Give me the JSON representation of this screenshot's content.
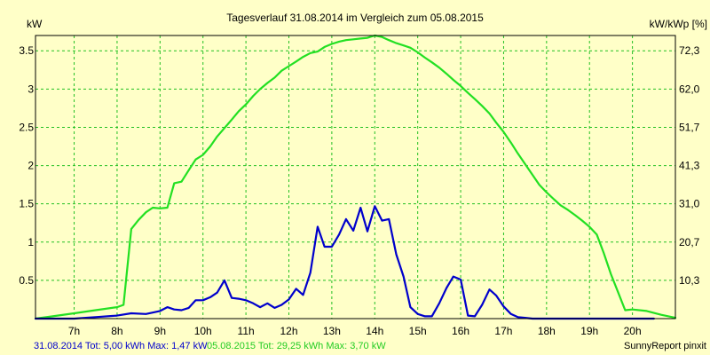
{
  "chart_data": {
    "type": "line",
    "title": "Tagesverlauf 31.08.2014 im Vergleich zum 05.08.2015",
    "ylabel_left": "kW",
    "ylabel_right": "kW/kWp [%]",
    "footer_credit": "SunnyReport pinxit",
    "x_ticks": [
      "7h",
      "8h",
      "9h",
      "10h",
      "11h",
      "12h",
      "13h",
      "14h",
      "15h",
      "16h",
      "17h",
      "18h",
      "19h",
      "20h"
    ],
    "xlim": [
      6.1,
      21.0
    ],
    "y_ticks": [
      "0.5",
      "1",
      "1.5",
      "2",
      "2.5",
      "3",
      "3.5"
    ],
    "ylim": [
      0,
      3.7
    ],
    "y2_ticks": [
      "10,3",
      "20,7",
      "31,0",
      "41,3",
      "51,7",
      "62,0",
      "72,3"
    ],
    "grid": true,
    "background": "#ffffc8",
    "grid_color": "#22c022",
    "series": [
      {
        "name": "05.08.2015",
        "color": "#22e022",
        "legend": "05.08.2015 Tot: 29,25 kWh Max: 3,70 kW",
        "x": [
          6.1,
          6.5,
          7.0,
          7.5,
          8.0,
          8.15,
          8.33,
          8.5,
          8.67,
          8.83,
          9.0,
          9.17,
          9.33,
          9.5,
          9.67,
          9.83,
          10.0,
          10.17,
          10.33,
          10.5,
          10.67,
          10.83,
          11.0,
          11.17,
          11.33,
          11.5,
          11.67,
          11.83,
          12.0,
          12.17,
          12.33,
          12.5,
          12.67,
          12.83,
          13.0,
          13.17,
          13.33,
          13.5,
          13.67,
          13.83,
          14.0,
          14.17,
          14.33,
          14.5,
          14.67,
          14.83,
          15.0,
          15.17,
          15.33,
          15.5,
          15.67,
          15.83,
          16.0,
          16.17,
          16.33,
          16.5,
          16.67,
          16.83,
          17.0,
          17.17,
          17.33,
          17.5,
          17.67,
          17.83,
          18.0,
          18.17,
          18.33,
          18.5,
          18.67,
          18.83,
          19.0,
          19.17,
          19.33,
          19.5,
          19.67,
          19.83,
          20.0,
          20.33,
          20.67,
          21.0
        ],
        "y": [
          0.0,
          0.03,
          0.07,
          0.11,
          0.15,
          0.18,
          1.17,
          1.29,
          1.39,
          1.45,
          1.44,
          1.45,
          1.77,
          1.79,
          1.94,
          2.08,
          2.14,
          2.25,
          2.38,
          2.49,
          2.6,
          2.71,
          2.8,
          2.91,
          3.0,
          3.08,
          3.15,
          3.24,
          3.3,
          3.36,
          3.42,
          3.47,
          3.49,
          3.55,
          3.59,
          3.62,
          3.64,
          3.65,
          3.66,
          3.67,
          3.7,
          3.68,
          3.64,
          3.6,
          3.57,
          3.54,
          3.48,
          3.41,
          3.35,
          3.28,
          3.2,
          3.12,
          3.04,
          2.95,
          2.87,
          2.78,
          2.68,
          2.56,
          2.44,
          2.3,
          2.16,
          2.02,
          1.88,
          1.75,
          1.65,
          1.56,
          1.48,
          1.42,
          1.35,
          1.28,
          1.2,
          1.1,
          0.86,
          0.58,
          0.34,
          0.11,
          0.12,
          0.1,
          0.05,
          0.01
        ]
      },
      {
        "name": "31.08.2014",
        "color": "#0000cc",
        "legend": "31.08.2014 Tot: 5,00 kWh Max: 1,47 kW",
        "x": [
          6.1,
          7.0,
          7.5,
          8.0,
          8.33,
          8.67,
          9.0,
          9.17,
          9.33,
          9.5,
          9.67,
          9.83,
          10.0,
          10.17,
          10.33,
          10.5,
          10.67,
          10.83,
          11.0,
          11.17,
          11.33,
          11.5,
          11.67,
          11.83,
          12.0,
          12.17,
          12.33,
          12.5,
          12.67,
          12.83,
          13.0,
          13.17,
          13.33,
          13.5,
          13.67,
          13.83,
          14.0,
          14.17,
          14.33,
          14.5,
          14.67,
          14.83,
          15.0,
          15.17,
          15.33,
          15.5,
          15.67,
          15.83,
          16.0,
          16.17,
          16.33,
          16.5,
          16.67,
          16.83,
          17.0,
          17.17,
          17.33,
          17.5,
          17.67,
          17.83,
          18.0,
          18.17,
          18.33,
          18.5,
          18.67,
          18.83,
          19.0,
          19.17,
          19.33,
          19.5,
          19.67,
          19.83,
          20.0,
          20.5
        ],
        "y": [
          0.0,
          0.0,
          0.02,
          0.04,
          0.07,
          0.06,
          0.1,
          0.15,
          0.12,
          0.11,
          0.14,
          0.24,
          0.24,
          0.28,
          0.34,
          0.5,
          0.27,
          0.26,
          0.24,
          0.2,
          0.15,
          0.2,
          0.14,
          0.18,
          0.25,
          0.39,
          0.31,
          0.6,
          1.2,
          0.94,
          0.94,
          1.1,
          1.3,
          1.15,
          1.45,
          1.14,
          1.47,
          1.28,
          1.3,
          0.84,
          0.55,
          0.15,
          0.06,
          0.03,
          0.03,
          0.2,
          0.4,
          0.55,
          0.51,
          0.04,
          0.03,
          0.18,
          0.38,
          0.3,
          0.16,
          0.06,
          0.02,
          0.01,
          0.0,
          0.0,
          0.0,
          0.0,
          0.0,
          0.0,
          0.0,
          0.0,
          0.0,
          0.0,
          0.0,
          0.0,
          0.0,
          0.0,
          0.0,
          0.0
        ]
      }
    ]
  }
}
